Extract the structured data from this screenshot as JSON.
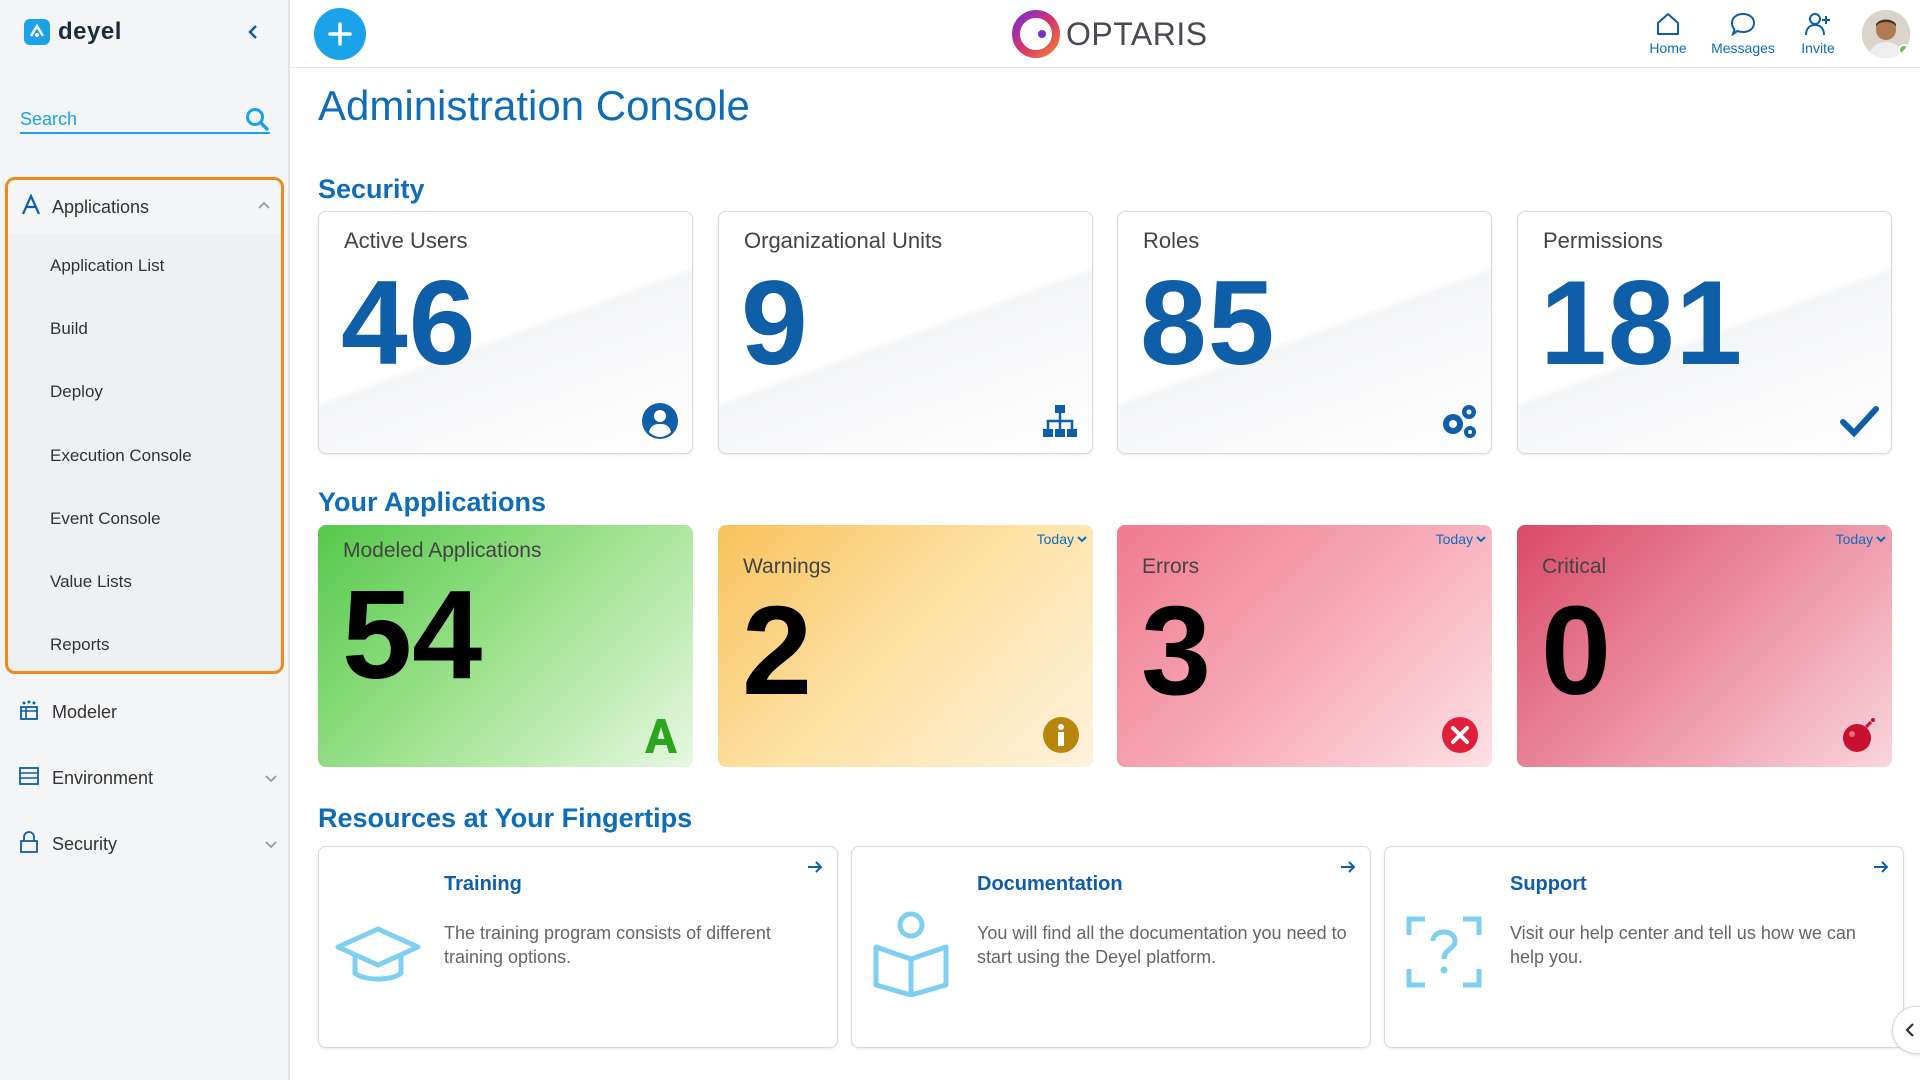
{
  "sidebar": {
    "logo_text": "deyel",
    "search": {
      "placeholder": "Search"
    },
    "applications": {
      "label": "Applications",
      "items": [
        {
          "label": "Application List"
        },
        {
          "label": "Build"
        },
        {
          "label": "Deploy"
        },
        {
          "label": "Execution Console"
        },
        {
          "label": "Event Console"
        },
        {
          "label": "Value Lists"
        },
        {
          "label": "Reports"
        }
      ]
    },
    "nav": [
      {
        "label": "Modeler",
        "icon": "modeler-icon"
      },
      {
        "label": "Environment",
        "icon": "environment-icon"
      },
      {
        "label": "Security",
        "icon": "lock-icon"
      }
    ]
  },
  "topbar": {
    "brand": "OPTARIS",
    "actions": [
      {
        "label": "Home",
        "icon": "home-icon"
      },
      {
        "label": "Messages",
        "icon": "chat-icon"
      },
      {
        "label": "Invite",
        "icon": "invite-icon"
      }
    ]
  },
  "main": {
    "title": "Administration Console",
    "security": {
      "title": "Security",
      "cards": [
        {
          "label": "Active Users",
          "value": "46",
          "icon": "user-circle-icon"
        },
        {
          "label": "Organizational Units",
          "value": "9",
          "icon": "org-chart-icon"
        },
        {
          "label": "Roles",
          "value": "85",
          "icon": "gears-icon"
        },
        {
          "label": "Permissions",
          "value": "181",
          "icon": "check-icon"
        }
      ]
    },
    "applications": {
      "title": "Your Applications",
      "cards": [
        {
          "label": "Modeled Applications",
          "value": "54",
          "icon": "letter-a-icon",
          "color": "#55c94a"
        },
        {
          "label": "Warnings",
          "value": "2",
          "today": "Today",
          "icon": "info-icon",
          "color": "#f8c25c"
        },
        {
          "label": "Errors",
          "value": "3",
          "today": "Today",
          "icon": "error-icon",
          "color": "#f07a8e"
        },
        {
          "label": "Critical",
          "value": "0",
          "today": "Today",
          "icon": "bomb-icon",
          "color": "#d94a68"
        }
      ]
    },
    "resources": {
      "title": "Resources at Your Fingertips",
      "cards": [
        {
          "title": "Training",
          "desc": "The training program consists of different training options.",
          "icon": "graduation-cap-icon"
        },
        {
          "title": "Documentation",
          "desc": "You will find all the documentation you need to start using the Deyel platform.",
          "icon": "book-reader-icon"
        },
        {
          "title": "Support",
          "desc": "Visit our help center and tell us how we can help you.",
          "icon": "help-question-icon"
        }
      ]
    }
  }
}
